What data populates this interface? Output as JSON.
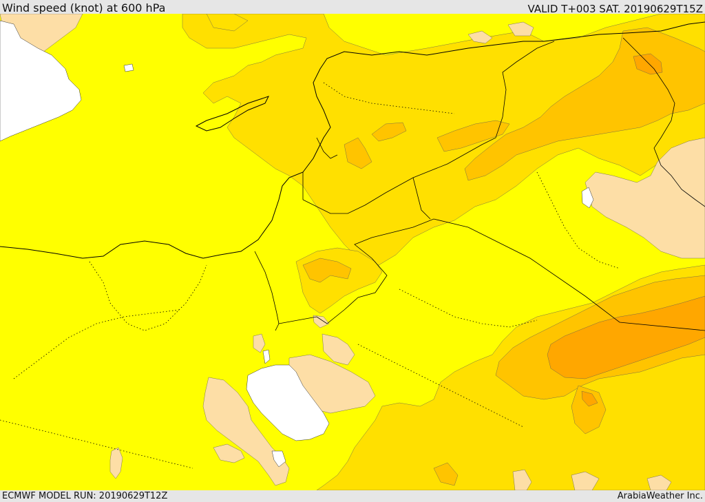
{
  "header": {
    "title": "Wind speed (knot) at 600 hPa",
    "valid_time": "VALID T+003 SAT. 20190629T15Z"
  },
  "footer": {
    "model_run": "ECMWF MODEL RUN: 20190629T12Z",
    "credit": "ArabiaWeather Inc."
  },
  "colors": {
    "level_1": "#ffff00",
    "level_2": "#ffe000",
    "level_3": "#ffc400",
    "level_4": "#ffa700",
    "calm": "#fddea6",
    "missing": "#ffffff",
    "coastline": "#000000"
  }
}
